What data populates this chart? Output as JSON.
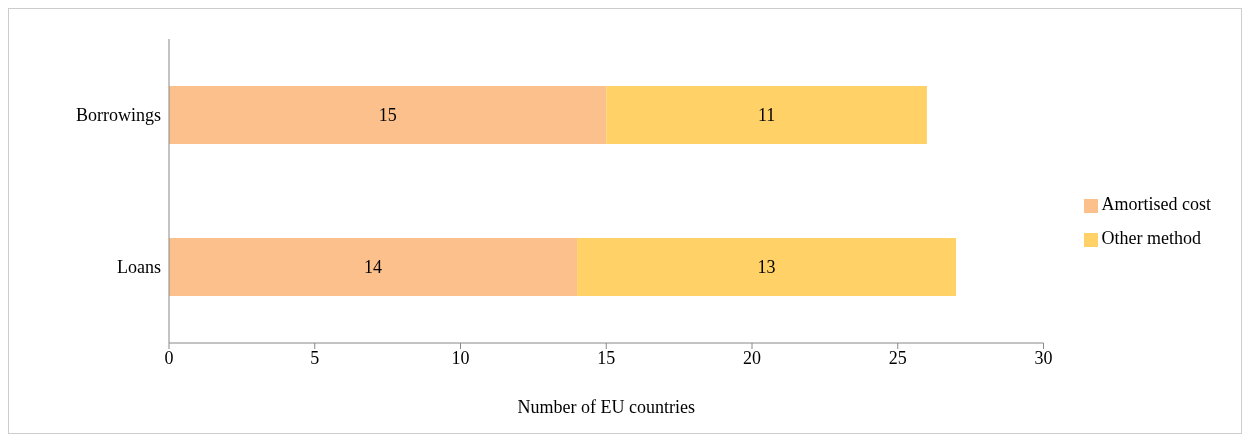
{
  "chart_data": {
    "type": "bar",
    "orientation": "horizontal",
    "stacked": true,
    "xlabel": "Number of EU countries",
    "categories": [
      "Borrowings",
      "Loans"
    ],
    "series": [
      {
        "name": "Amortised cost",
        "color": "#fcc08d",
        "values": [
          15,
          14
        ]
      },
      {
        "name": "Other method",
        "color": "#ffd166",
        "values": [
          11,
          13
        ]
      }
    ],
    "xlim": [
      0,
      30
    ],
    "xticks": [
      0,
      5,
      10,
      15,
      20,
      25,
      30
    ],
    "data_labels": true,
    "legend": "right",
    "grid": false
  }
}
